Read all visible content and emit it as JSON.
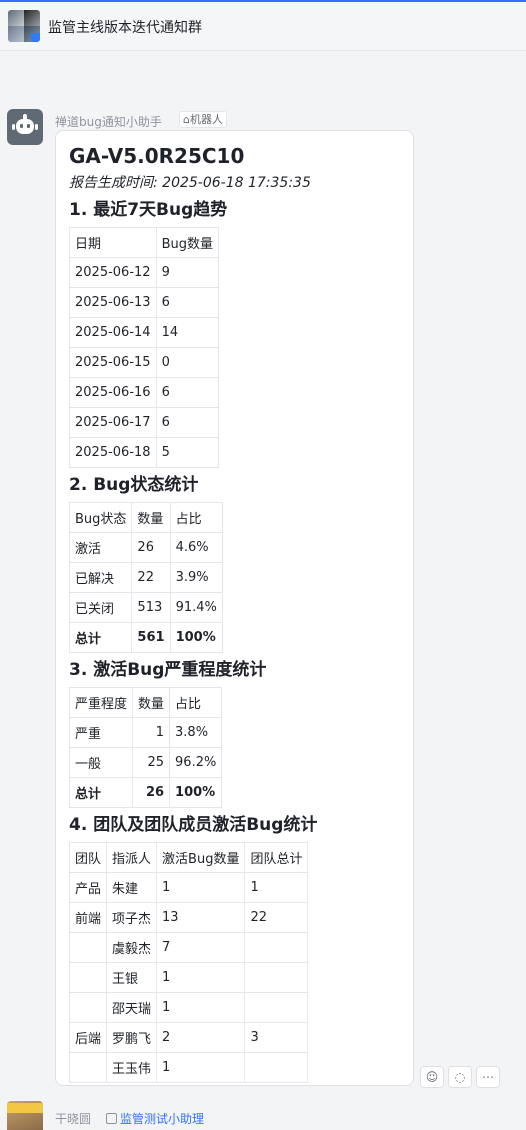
{
  "header": {
    "group_title": "监管主线版本迭代通知群"
  },
  "message": {
    "sender": "禅道bug通知小助手",
    "tag": "机器人",
    "title": "GA-V5.0R25C10",
    "subtitle": "报告生成时间: 2025-06-18 17:35:35",
    "section1": {
      "title": "1. 最近7天Bug趋势",
      "headers": [
        "日期",
        "Bug数量"
      ],
      "rows": [
        [
          "2025-06-12",
          "9"
        ],
        [
          "2025-06-13",
          "6"
        ],
        [
          "2025-06-14",
          "14"
        ],
        [
          "2025-06-15",
          "0"
        ],
        [
          "2025-06-16",
          "6"
        ],
        [
          "2025-06-17",
          "6"
        ],
        [
          "2025-06-18",
          "5"
        ]
      ]
    },
    "section2": {
      "title": "2. Bug状态统计",
      "headers": [
        "Bug状态",
        "数量",
        "占比"
      ],
      "rows": [
        [
          "激活",
          "26",
          "4.6%"
        ],
        [
          "已解决",
          "22",
          "3.9%"
        ],
        [
          "已关闭",
          "513",
          "91.4%"
        ]
      ],
      "total": [
        "总计",
        "561",
        "100%"
      ]
    },
    "section3": {
      "title": "3. 激活Bug严重程度统计",
      "headers": [
        "严重程度",
        "数量",
        "占比"
      ],
      "rows": [
        [
          "严重",
          "1",
          "3.8%"
        ],
        [
          "一般",
          "25",
          "96.2%"
        ]
      ],
      "total": [
        "总计",
        "26",
        "100%"
      ]
    },
    "section4": {
      "title": "4. 团队及团队成员激活Bug统计",
      "headers": [
        "团队",
        "指派人",
        "激活Bug数量",
        "团队总计"
      ],
      "rows": [
        [
          "产品",
          "朱建",
          "1",
          "1"
        ],
        [
          "前端",
          "项子杰",
          "13",
          "22"
        ],
        [
          "",
          "虞毅杰",
          "7",
          ""
        ],
        [
          "",
          "王银",
          "1",
          ""
        ],
        [
          "",
          "邵天瑞",
          "1",
          ""
        ],
        [
          "后端",
          "罗鹏飞",
          "2",
          "3"
        ],
        [
          "",
          "王玉伟",
          "1",
          ""
        ]
      ]
    }
  },
  "bottom": {
    "sender": "干晓圆",
    "link": "监管测试小助理"
  }
}
